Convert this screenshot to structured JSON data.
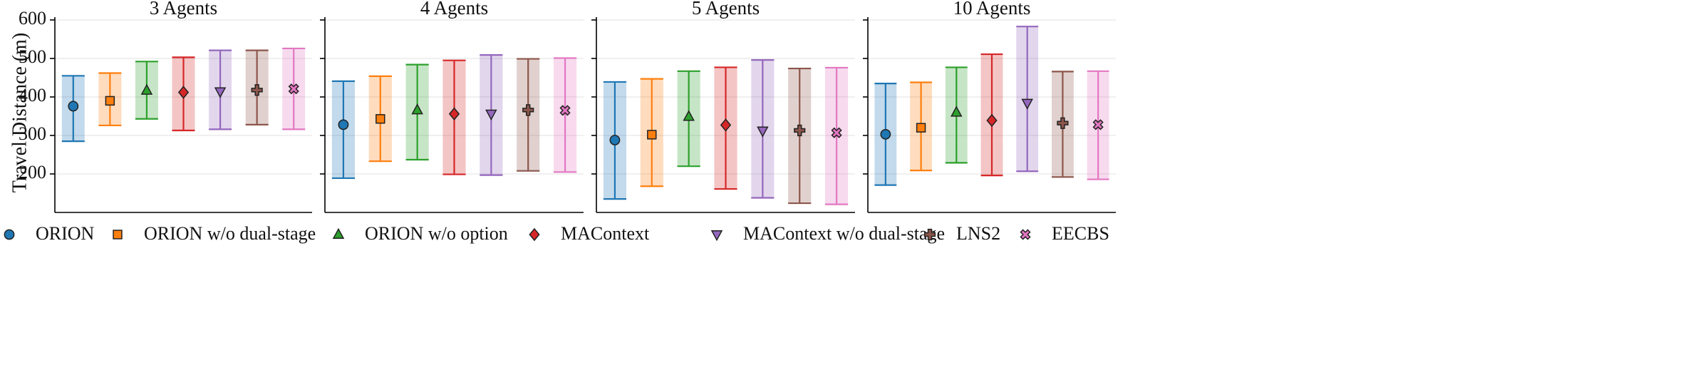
{
  "chart_data": {
    "type": "range",
    "ylabel": "Travel Distance (m)",
    "ylim": [
      100,
      600
    ],
    "yticks": [
      200,
      300,
      400,
      500,
      600
    ],
    "grid": true,
    "legend_position": "bottom",
    "series": [
      {
        "name": "ORION",
        "color": "#1f77b4",
        "marker": "circle"
      },
      {
        "name": "ORION w/o dual-stage",
        "color": "#ff7f0e",
        "marker": "square"
      },
      {
        "name": "ORION w/o option",
        "color": "#2ca02c",
        "marker": "triangle-up"
      },
      {
        "name": "MAContext",
        "color": "#d62728",
        "marker": "diamond"
      },
      {
        "name": "MAContext w/o dual-stage",
        "color": "#9467bd",
        "marker": "triangle-down"
      },
      {
        "name": "LNS2",
        "color": "#8c564b",
        "marker": "plus"
      },
      {
        "name": "EECBS",
        "color": "#e377c2",
        "marker": "x"
      }
    ],
    "panels": [
      {
        "title": "3 Agents",
        "mean": [
          376,
          390,
          417,
          412,
          414,
          418,
          421
        ],
        "min": [
          285,
          326,
          343,
          313,
          316,
          328,
          316
        ],
        "max": [
          455,
          462,
          492,
          503,
          521,
          521,
          526
        ]
      },
      {
        "title": "4 Agents",
        "mean": [
          328,
          343,
          366,
          356,
          356,
          366,
          365
        ],
        "min": [
          189,
          233,
          237,
          199,
          197,
          208,
          205
        ],
        "max": [
          441,
          454,
          484,
          495,
          509,
          499,
          501
        ]
      },
      {
        "title": "5 Agents",
        "mean": [
          288,
          302,
          349,
          327,
          312,
          313,
          307
        ],
        "min": [
          135,
          168,
          220,
          161,
          138,
          124,
          121
        ],
        "max": [
          439,
          447,
          467,
          477,
          496,
          474,
          476
        ]
      },
      {
        "title": "10 Agents",
        "mean": [
          303,
          320,
          360,
          339,
          384,
          332,
          328
        ],
        "min": [
          171,
          209,
          229,
          196,
          207,
          192,
          186
        ],
        "max": [
          435,
          438,
          477,
          511,
          583,
          466,
          467
        ]
      }
    ]
  }
}
